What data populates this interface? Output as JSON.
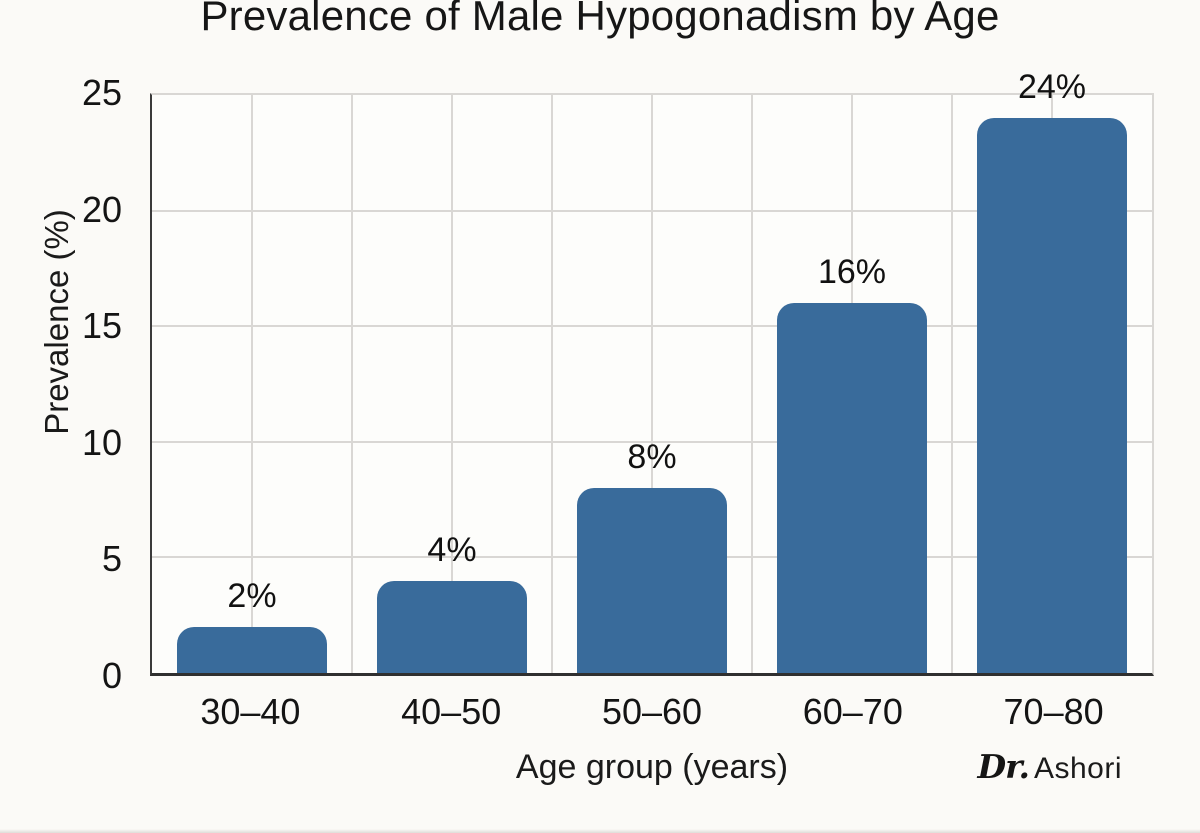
{
  "chart_data": {
    "type": "bar",
    "title": "Prevalence of Male Hypogonadism by Age",
    "xlabel": "Age group (years)",
    "ylabel": "Prevalence (%)",
    "categories": [
      "30–40",
      "40–50",
      "50–60",
      "60–70",
      "70–80"
    ],
    "values": [
      2,
      4,
      8,
      16,
      24
    ],
    "bar_labels": [
      "2%",
      "4%",
      "8%",
      "16%",
      "24%"
    ],
    "ylim": [
      0,
      25
    ],
    "yticks": [
      0,
      5,
      10,
      15,
      20,
      25
    ],
    "grid": "both",
    "legend": "none",
    "bar_color": "#396b9b"
  },
  "signature": {
    "prefix": "Dr.",
    "name": "Ashori"
  },
  "colors": {
    "background": "#fbfaf7",
    "plot_background": "#fdfdfb",
    "bar": "#396b9b",
    "gridline": "#d9d7d4",
    "axis": "#3a3a3a",
    "text": "#1c1c1c"
  }
}
